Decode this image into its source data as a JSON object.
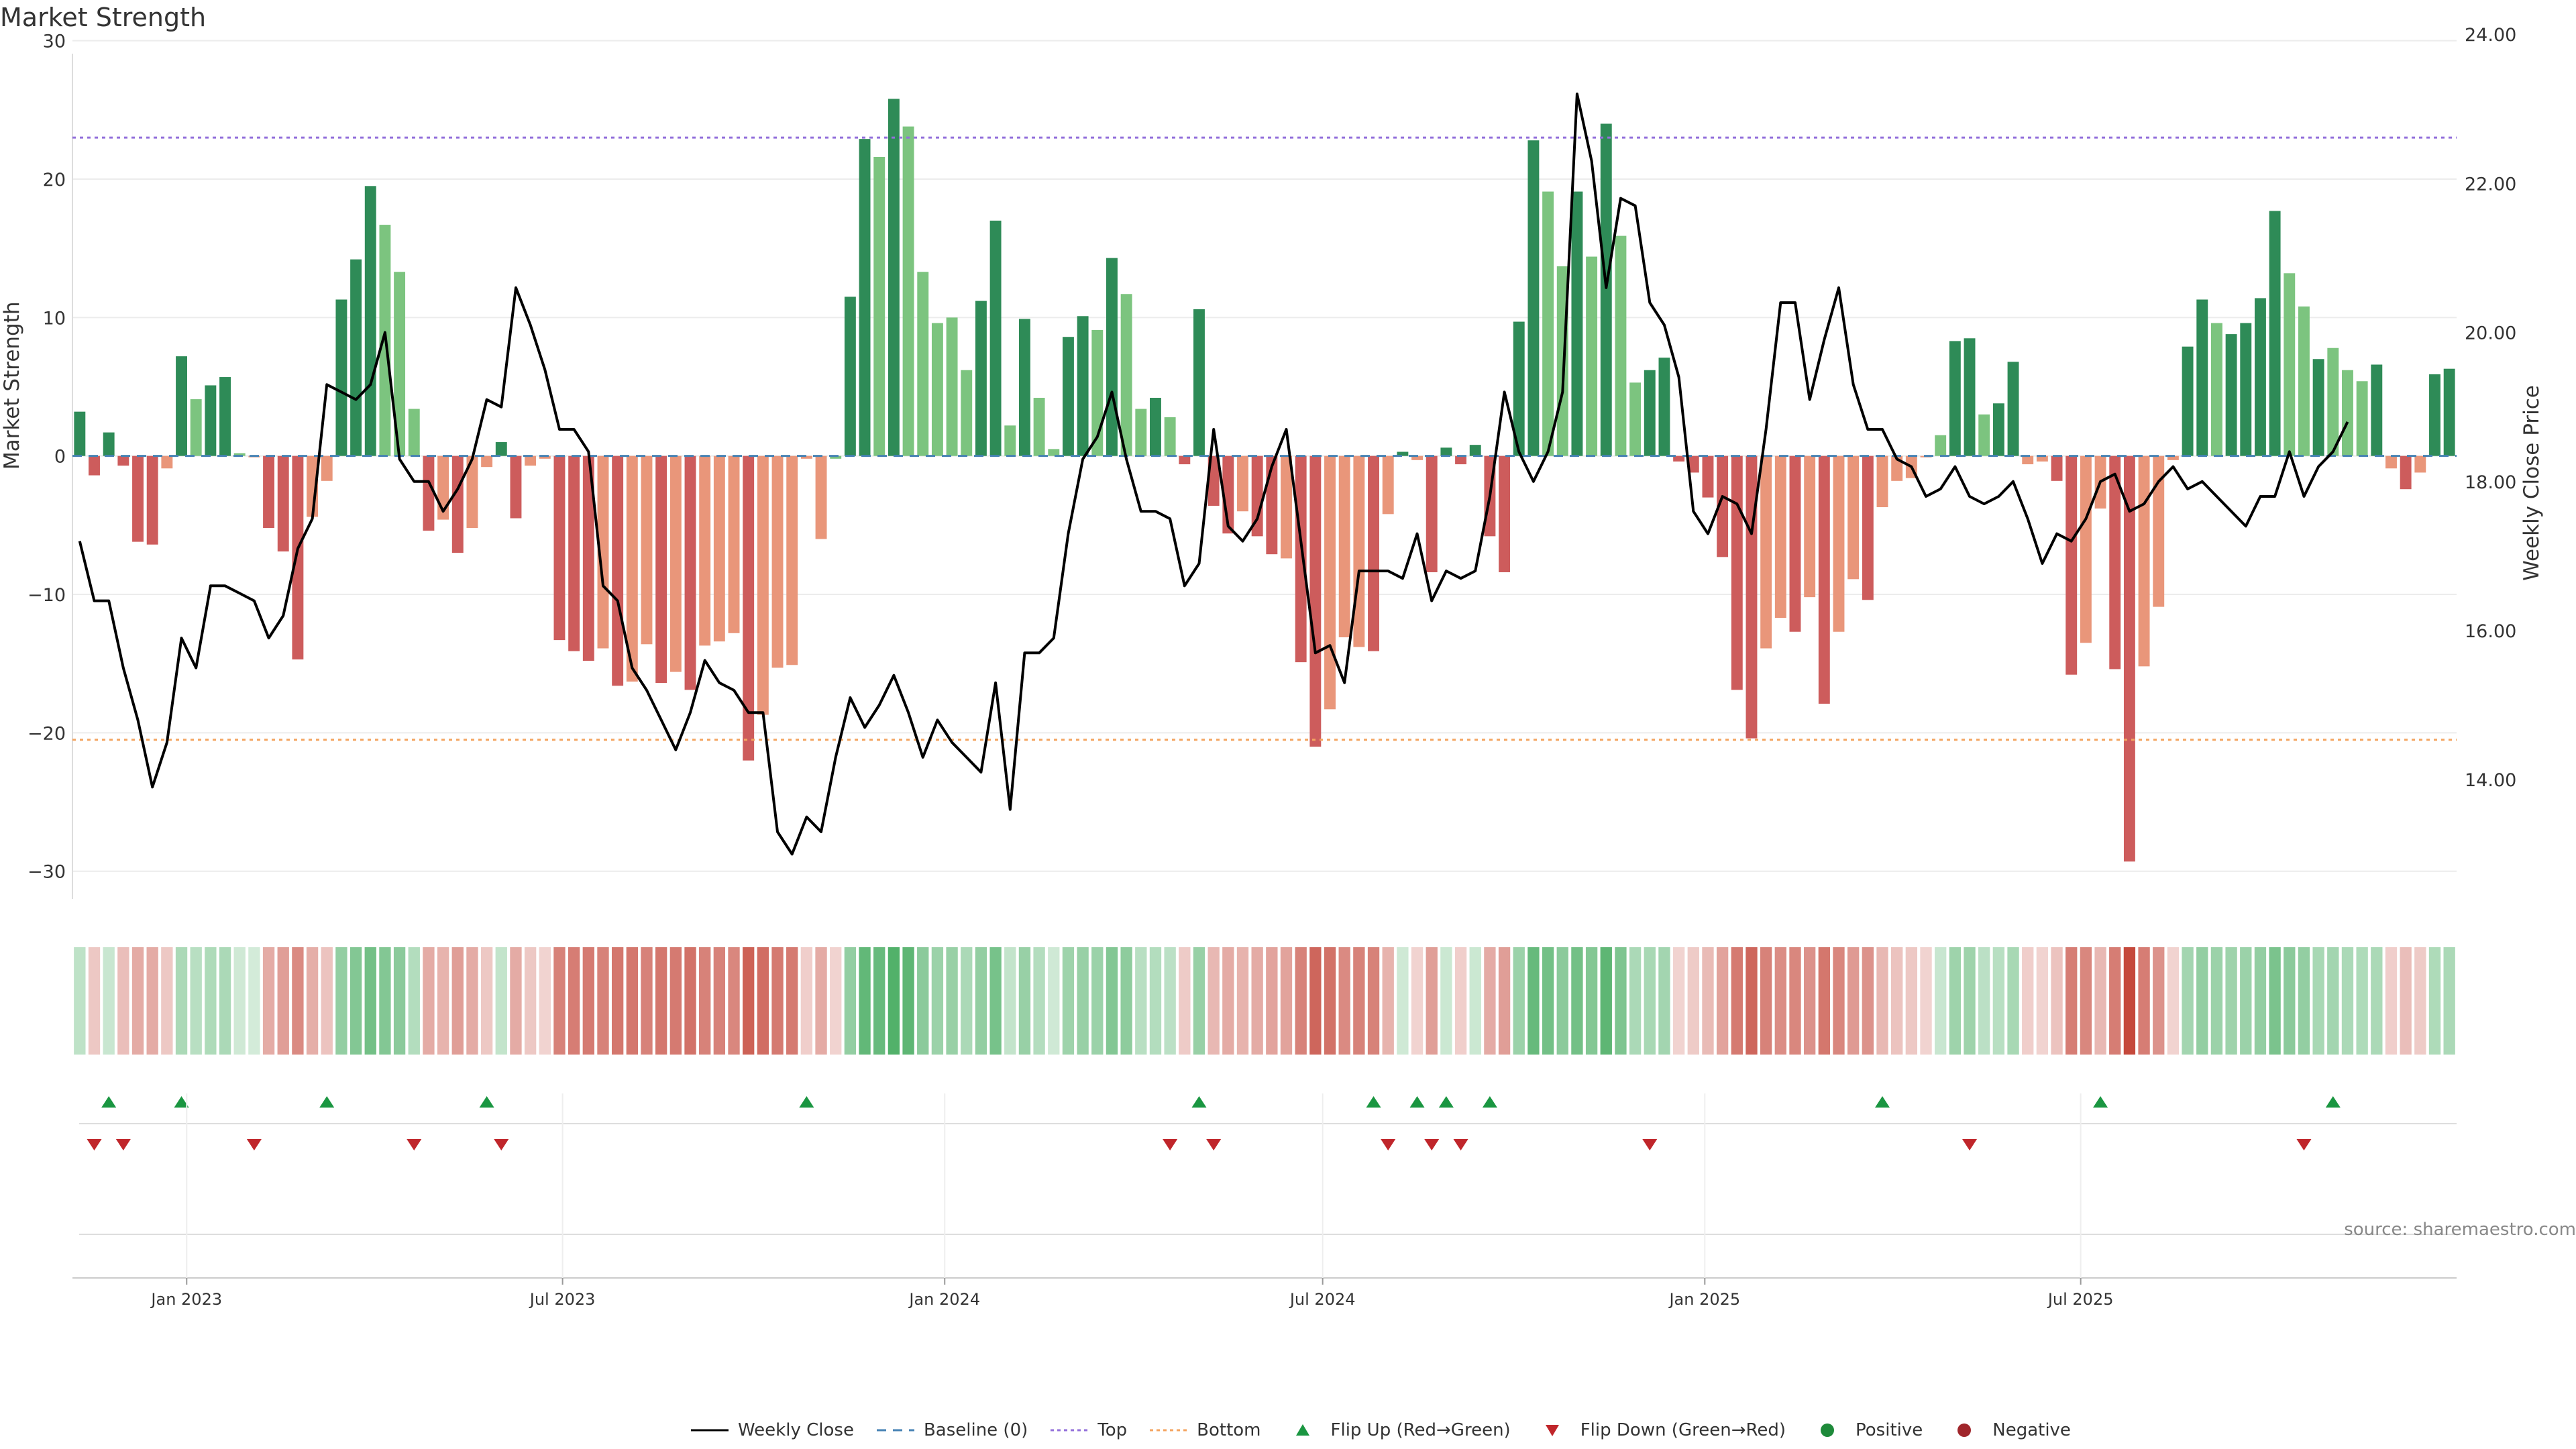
{
  "chart_data": {
    "type": "bar",
    "title": "Market Strength",
    "ylabel": "Market Strength",
    "y2label": "Weekly Close Price",
    "source": "source: sharemaestro.com",
    "ylim": [
      -32,
      31
    ],
    "y2lim": [
      12.4,
      24.1
    ],
    "y_ticks": [
      30,
      20,
      10,
      0,
      -10,
      -20,
      -30
    ],
    "y_tick_labels": [
      "30",
      "20",
      "10",
      "0",
      "−10",
      "−20",
      "−30"
    ],
    "y2_ticks": [
      24,
      22,
      20,
      18,
      16,
      14
    ],
    "y2_tick_labels": [
      "24.00",
      "22.00",
      "20.00",
      "18.00",
      "16.00",
      "14.00"
    ],
    "x_start": "2022-11-07",
    "x_ticks": [
      "2023-01-01",
      "2023-07-01",
      "2024-01-01",
      "2024-07-01",
      "2025-01-01",
      "2025-07-01"
    ],
    "x_tick_labels": [
      "Jan 2023",
      "Jul 2023",
      "Jan 2024",
      "Jul 2024",
      "Jan 2025",
      "Jul 2025"
    ],
    "top_line": 23,
    "bottom_line": -20.5,
    "baseline": 0,
    "colors": {
      "pos_strong": "#2e8b57",
      "pos_light": "#7cc47f",
      "neg_strong": "#cd5c5c",
      "neg_light": "#e9967a",
      "price": "#000000",
      "top": "#9370db",
      "bottom": "#f4a460",
      "baseline": "#4682b4",
      "flip_up": "#1a9641",
      "flip_down": "#c0262b"
    },
    "strength": [
      3.2,
      -1.4,
      1.7,
      -0.7,
      -6.2,
      -6.4,
      -0.9,
      7.2,
      4.1,
      5.1,
      5.7,
      0.2,
      0,
      -5.2,
      -6.9,
      -14.7,
      -4.4,
      -1.8,
      11.3,
      14.2,
      19.5,
      16.7,
      13.3,
      3.4,
      -5.4,
      -4.6,
      -7.0,
      -5.2,
      -0.8,
      1.0,
      -4.5,
      -0.7,
      -0.2,
      -13.3,
      -14.1,
      -14.8,
      -13.9,
      -16.6,
      -16.3,
      -13.6,
      -16.4,
      -15.6,
      -16.9,
      -13.7,
      -13.4,
      -12.8,
      -22.0,
      -18.7,
      -15.3,
      -15.1,
      -0.2,
      -6.0,
      -0.2,
      11.5,
      22.9,
      21.6,
      25.8,
      23.8,
      13.3,
      9.6,
      10.0,
      6.2,
      11.2,
      17.0,
      2.2,
      9.9,
      4.2,
      0.5,
      8.6,
      10.1,
      9.1,
      14.3,
      11.7,
      3.4,
      4.2,
      2.8,
      -0.6,
      10.6,
      -3.6,
      -5.6,
      -4.0,
      -5.8,
      -7.1,
      -7.4,
      -14.9,
      -21.0,
      -18.3,
      -13.1,
      -13.8,
      -14.1,
      -4.2,
      0.3,
      -0.3,
      -8.4,
      0.6,
      -0.6,
      0.8,
      -5.8,
      -8.4,
      9.7,
      22.8,
      19.1,
      13.7,
      19.1,
      14.4,
      24.0,
      15.9,
      5.3,
      6.2,
      7.1,
      -0.4,
      -1.2,
      -3.0,
      -7.3,
      -16.9,
      -20.4,
      -13.9,
      -11.7,
      -12.7,
      -10.2,
      -17.9,
      -12.7,
      -8.9,
      -10.4,
      -3.7,
      -1.8,
      -1.6,
      -0.1,
      1.5,
      8.3,
      8.5,
      3.0,
      3.8,
      6.8,
      -0.6,
      -0.4,
      -1.8,
      -15.8,
      -13.5,
      -3.8,
      -15.4,
      -29.3,
      -15.2,
      -10.9,
      -0.3,
      7.9,
      11.3,
      9.6,
      8.8,
      9.6,
      11.4,
      17.7,
      13.2,
      10.8,
      7.0,
      7.8,
      6.2,
      5.4,
      6.6,
      -0.9,
      -2.4,
      -1.2,
      5.9,
      6.3
    ],
    "strength_colors": [
      "pos_strong",
      "neg_strong",
      "pos_strong",
      "neg_strong",
      "neg_strong",
      "neg_strong",
      "neg_light",
      "pos_strong",
      "pos_light",
      "pos_strong",
      "pos_strong",
      "pos_light",
      "neg_light",
      "neg_strong",
      "neg_strong",
      "neg_strong",
      "neg_light",
      "neg_light",
      "pos_strong",
      "pos_strong",
      "pos_strong",
      "pos_light",
      "pos_light",
      "pos_light",
      "neg_strong",
      "neg_light",
      "neg_strong",
      "neg_light",
      "neg_light",
      "pos_strong",
      "neg_strong",
      "neg_light",
      "neg_light",
      "neg_strong",
      "neg_strong",
      "neg_strong",
      "neg_light",
      "neg_strong",
      "neg_light",
      "neg_light",
      "neg_strong",
      "neg_light",
      "neg_strong",
      "neg_light",
      "neg_light",
      "neg_light",
      "neg_strong",
      "neg_light",
      "neg_light",
      "neg_light",
      "neg_light",
      "neg_light",
      "pos_light",
      "pos_strong",
      "pos_strong",
      "pos_light",
      "pos_strong",
      "pos_light",
      "pos_light",
      "pos_light",
      "pos_light",
      "pos_light",
      "pos_strong",
      "pos_strong",
      "pos_light",
      "pos_strong",
      "pos_light",
      "pos_light",
      "pos_strong",
      "pos_strong",
      "pos_light",
      "pos_strong",
      "pos_light",
      "pos_light",
      "pos_strong",
      "pos_light",
      "neg_strong",
      "pos_strong",
      "neg_strong",
      "neg_strong",
      "neg_light",
      "neg_strong",
      "neg_strong",
      "neg_light",
      "neg_strong",
      "neg_strong",
      "neg_light",
      "neg_light",
      "neg_light",
      "neg_strong",
      "neg_light",
      "pos_strong",
      "neg_light",
      "neg_strong",
      "pos_strong",
      "neg_strong",
      "pos_strong",
      "neg_strong",
      "neg_strong",
      "pos_strong",
      "pos_strong",
      "pos_light",
      "pos_light",
      "pos_strong",
      "pos_light",
      "pos_strong",
      "pos_light",
      "pos_light",
      "pos_strong",
      "pos_strong",
      "neg_strong",
      "neg_strong",
      "neg_strong",
      "neg_strong",
      "neg_strong",
      "neg_strong",
      "neg_light",
      "neg_light",
      "neg_strong",
      "neg_light",
      "neg_strong",
      "neg_light",
      "neg_light",
      "neg_strong",
      "neg_light",
      "neg_light",
      "neg_light",
      "neg_light",
      "pos_light",
      "pos_strong",
      "pos_strong",
      "pos_light",
      "pos_strong",
      "pos_strong",
      "neg_light",
      "neg_light",
      "neg_strong",
      "neg_strong",
      "neg_light",
      "neg_light",
      "neg_strong",
      "neg_strong",
      "neg_light",
      "neg_light",
      "neg_light",
      "pos_strong",
      "pos_strong",
      "pos_light",
      "pos_strong",
      "pos_strong",
      "pos_strong",
      "pos_strong",
      "pos_light",
      "pos_light",
      "pos_strong",
      "pos_light",
      "pos_light",
      "pos_light",
      "pos_strong",
      "neg_light",
      "neg_strong",
      "neg_light",
      "pos_strong",
      "pos_strong"
    ],
    "price": [
      17.2,
      16.4,
      16.4,
      15.5,
      14.8,
      13.9,
      14.5,
      15.9,
      15.5,
      16.6,
      16.6,
      16.5,
      16.4,
      15.9,
      16.2,
      17.1,
      17.5,
      19.3,
      19.2,
      19.1,
      19.3,
      20.0,
      18.3,
      18.0,
      18.0,
      17.6,
      17.9,
      18.3,
      19.1,
      19.0,
      20.6,
      20.1,
      19.5,
      18.7,
      18.7,
      18.4,
      16.6,
      16.4,
      15.5,
      15.2,
      14.8,
      14.4,
      14.9,
      15.6,
      15.3,
      15.2,
      14.9,
      14.9,
      13.3,
      13.0,
      13.5,
      13.3,
      14.3,
      15.1,
      14.7,
      15.0,
      15.4,
      14.9,
      14.3,
      14.8,
      14.5,
      14.3,
      14.1,
      15.3,
      13.6,
      15.7,
      15.7,
      15.9,
      17.3,
      18.3,
      18.6,
      19.2,
      18.3,
      17.6,
      17.6,
      17.5,
      16.6,
      16.9,
      18.7,
      17.4,
      17.2,
      17.5,
      18.2,
      18.7,
      17.2,
      15.7,
      15.8,
      15.3,
      16.8,
      16.8,
      16.8,
      16.7,
      17.3,
      16.4,
      16.8,
      16.7,
      16.8,
      17.8,
      19.2,
      18.4,
      18.0,
      18.4,
      19.2,
      23.2,
      22.3,
      20.6,
      21.8,
      21.7,
      20.4,
      20.1,
      19.4,
      17.6,
      17.3,
      17.8,
      17.7,
      17.3,
      18.7,
      20.4,
      20.4,
      19.1,
      19.9,
      20.6,
      19.3,
      18.7,
      18.7,
      18.3,
      18.2,
      17.8,
      17.9,
      18.2,
      17.8,
      17.7,
      17.8,
      18.0,
      17.5,
      16.9,
      17.3,
      17.2,
      17.5,
      18.0,
      18.1,
      17.6,
      17.7,
      18.0,
      18.2,
      17.9,
      18.0,
      17.8,
      17.6,
      17.4,
      17.8,
      17.8,
      18.4,
      17.8,
      18.2,
      18.4,
      18.8
    ],
    "heat_levels": [
      0.18,
      0.12,
      0.12,
      0.18,
      0.3,
      0.3,
      0.12,
      0.3,
      0.22,
      0.28,
      0.3,
      0.08,
      0.05,
      0.3,
      0.38,
      0.5,
      0.28,
      0.15,
      0.45,
      0.55,
      0.65,
      0.55,
      0.5,
      0.25,
      0.3,
      0.25,
      0.38,
      0.3,
      0.12,
      0.15,
      0.3,
      0.12,
      0.05,
      0.55,
      0.58,
      0.6,
      0.55,
      0.62,
      0.62,
      0.55,
      0.62,
      0.6,
      0.65,
      0.55,
      0.55,
      0.52,
      0.75,
      0.68,
      0.6,
      0.6,
      0.08,
      0.3,
      0.05,
      0.45,
      0.75,
      0.72,
      0.85,
      0.78,
      0.5,
      0.4,
      0.42,
      0.3,
      0.45,
      0.62,
      0.15,
      0.42,
      0.25,
      0.08,
      0.38,
      0.42,
      0.4,
      0.55,
      0.48,
      0.22,
      0.25,
      0.2,
      0.1,
      0.42,
      0.22,
      0.3,
      0.25,
      0.3,
      0.35,
      0.35,
      0.55,
      0.72,
      0.65,
      0.5,
      0.55,
      0.55,
      0.25,
      0.08,
      0.05,
      0.38,
      0.1,
      0.08,
      0.1,
      0.3,
      0.38,
      0.4,
      0.72,
      0.65,
      0.5,
      0.65,
      0.55,
      0.78,
      0.58,
      0.3,
      0.32,
      0.35,
      0.05,
      0.1,
      0.2,
      0.35,
      0.6,
      0.72,
      0.55,
      0.48,
      0.52,
      0.45,
      0.62,
      0.52,
      0.4,
      0.45,
      0.22,
      0.15,
      0.12,
      0.05,
      0.12,
      0.38,
      0.38,
      0.2,
      0.22,
      0.32,
      0.08,
      0.05,
      0.15,
      0.58,
      0.52,
      0.22,
      0.58,
      0.9,
      0.58,
      0.45,
      0.05,
      0.35,
      0.45,
      0.4,
      0.38,
      0.4,
      0.45,
      0.6,
      0.5,
      0.45,
      0.32,
      0.35,
      0.3,
      0.28,
      0.3,
      0.08,
      0.18,
      0.1,
      0.28,
      0.3
    ],
    "flip_up_weeks": [
      2,
      7,
      17,
      28,
      50,
      77,
      89,
      92,
      94,
      97,
      124,
      139,
      155
    ],
    "flip_down_weeks": [
      1,
      3,
      12,
      23,
      29,
      75,
      78,
      90,
      93,
      95,
      108,
      130,
      153
    ],
    "legend": [
      {
        "key": "price",
        "label": "Weekly Close"
      },
      {
        "key": "baseline",
        "label": "Baseline (0)"
      },
      {
        "key": "top",
        "label": "Top"
      },
      {
        "key": "bottom",
        "label": "Bottom"
      },
      {
        "key": "flip_up",
        "label": "Flip Up (Red→Green)"
      },
      {
        "key": "flip_down",
        "label": "Flip Down (Green→Red)"
      },
      {
        "key": "positive",
        "label": "Positive"
      },
      {
        "key": "negative",
        "label": "Negative"
      }
    ]
  }
}
